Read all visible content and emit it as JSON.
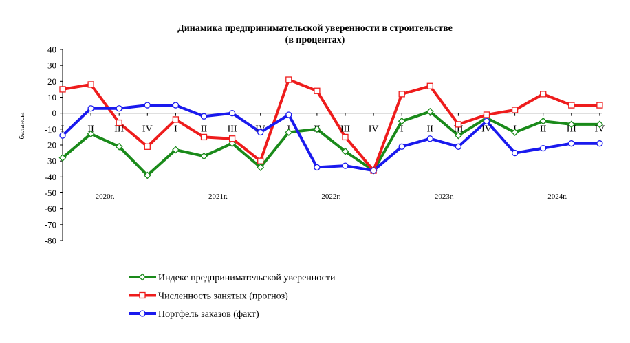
{
  "chart_data": {
    "type": "line",
    "title": "Динамика предпринимательской уверенности в строительстве",
    "subtitle": "(в процентах)",
    "ylabel": "балансы",
    "ylim": [
      -80,
      40
    ],
    "ytick_step": 10,
    "grid": false,
    "legend_position": "bottom",
    "categories": [
      "I",
      "II",
      "III",
      "IV",
      "I",
      "II",
      "III",
      "IV",
      "I",
      "II",
      "III",
      "IV",
      "I",
      "II",
      "III",
      "IV",
      "I",
      "II",
      "III",
      "IV"
    ],
    "years": [
      "2020г.",
      "2021г.",
      "2022г.",
      "2023г.",
      "2024г."
    ],
    "series": [
      {
        "name": "Индекс предпринимательской уверенности",
        "color": "#1a8a1a",
        "marker": "diamond",
        "values": [
          -28,
          -13,
          -21,
          -39,
          -23,
          -27,
          -19,
          -34,
          -12,
          -10,
          -24,
          -36,
          -5,
          1,
          -14,
          -3,
          -12,
          -5,
          -7,
          -7
        ]
      },
      {
        "name": "Численность занятых (прогноз)",
        "color": "#ee1c1c",
        "marker": "square",
        "values": [
          15,
          18,
          -6,
          -21,
          -4,
          -15,
          -16,
          -30,
          21,
          14,
          -15,
          -36,
          12,
          17,
          -7,
          -1,
          2,
          12,
          5,
          5
        ]
      },
      {
        "name": "Портфель заказов (факт)",
        "color": "#1a1aee",
        "marker": "circle",
        "values": [
          -14,
          3,
          3,
          5,
          5,
          -2,
          0,
          -12,
          -1,
          -34,
          -33,
          -36,
          -21,
          -16,
          -21,
          -5,
          -25,
          -22,
          -19,
          -19
        ]
      }
    ]
  }
}
